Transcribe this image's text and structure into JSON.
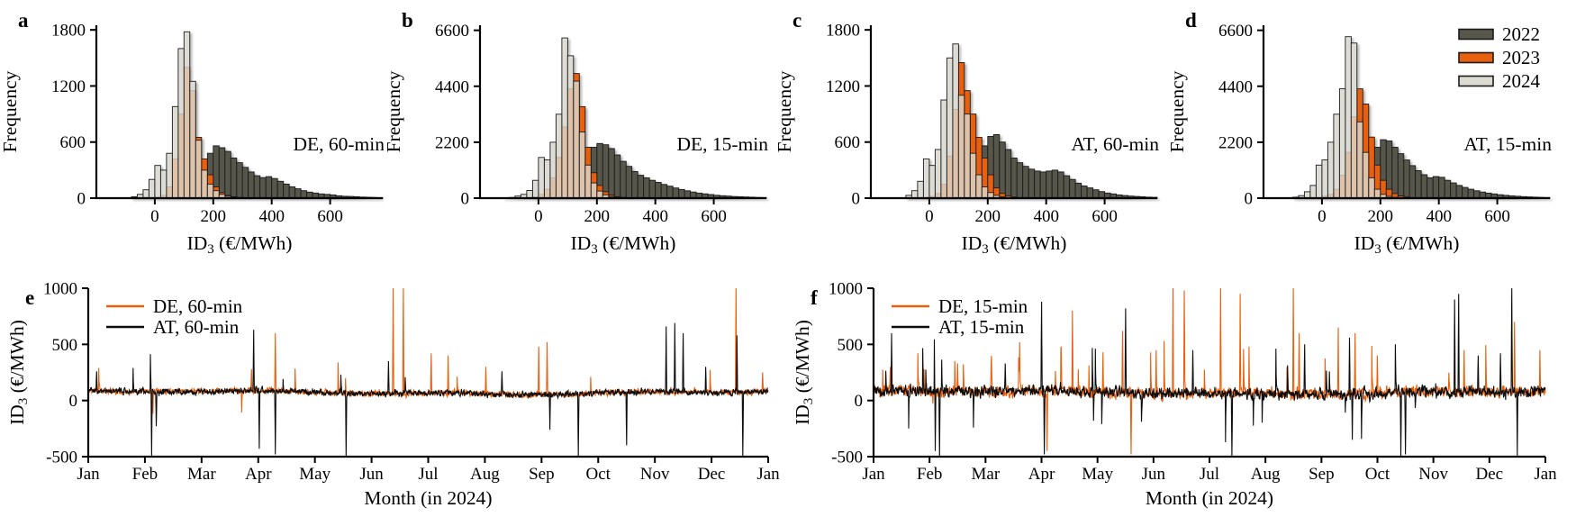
{
  "figure": {
    "background": "#ffffff",
    "axis_color": "#000000",
    "bar_border_color": "#1a1a1a",
    "years_legend": {
      "items": [
        {
          "label": "2022",
          "color": "#57574b"
        },
        {
          "label": "2023",
          "color": "#e8600e"
        },
        {
          "label": "2024",
          "color": "#dcdbd2"
        }
      ]
    },
    "panel_letters": [
      "a",
      "b",
      "c",
      "d",
      "e",
      "f"
    ]
  },
  "chart_data": [
    {
      "id": "a",
      "type": "bar",
      "subtype": "histogram",
      "letter": "a",
      "region_label": "DE, 60-min",
      "ylabel": "Frequency",
      "xlabel": {
        "pre": "ID",
        "sub": "3",
        "post": " (€/MWh)"
      },
      "xlim": [
        -200,
        780
      ],
      "xticks": [
        0,
        200,
        400,
        600
      ],
      "ylim": [
        0,
        1850
      ],
      "yticks": [
        0,
        600,
        1200,
        1800
      ],
      "bin_width": 20,
      "series": [
        {
          "name": "2022",
          "color": "#57574b",
          "opacity": 1,
          "offset": 11,
          "values": [
            5,
            10,
            20,
            40,
            80,
            140,
            220,
            350,
            480,
            560,
            540,
            500,
            430,
            380,
            330,
            280,
            240,
            220,
            230,
            210,
            180,
            150,
            120,
            100,
            80,
            65,
            55,
            45,
            40,
            35,
            25,
            20,
            18,
            15,
            12,
            10,
            8,
            6
          ]
        },
        {
          "name": "2023",
          "color": "#e8600e",
          "opacity": 1,
          "offset": 10,
          "values": [
            10,
            30,
            120,
            420,
            900,
            1400,
            1150,
            650,
            420,
            250,
            120,
            60,
            30,
            15,
            8,
            4
          ]
        },
        {
          "name": "2024",
          "color": "#dcdbd2",
          "opacity": 0.8,
          "offset": 6,
          "values": [
            15,
            40,
            90,
            200,
            350,
            300,
            480,
            980,
            1600,
            1780,
            1250,
            620,
            300,
            150,
            80,
            40,
            20,
            10,
            5
          ]
        }
      ]
    },
    {
      "id": "b",
      "type": "bar",
      "subtype": "histogram",
      "letter": "b",
      "region_label": "DE, 15-min",
      "ylabel": "Frequency",
      "xlabel": {
        "pre": "ID",
        "sub": "3",
        "post": " (€/MWh)"
      },
      "xlim": [
        -200,
        780
      ],
      "xticks": [
        0,
        200,
        400,
        600
      ],
      "ylim": [
        0,
        6800
      ],
      "yticks": [
        0,
        2200,
        4400,
        6600
      ],
      "bin_width": 20,
      "series": [
        {
          "name": "2022",
          "color": "#57574b",
          "opacity": 1,
          "offset": 10,
          "values": [
            30,
            60,
            100,
            160,
            260,
            400,
            700,
            1100,
            1600,
            2000,
            2150,
            2100,
            1950,
            1700,
            1450,
            1250,
            1050,
            900,
            800,
            700,
            620,
            540,
            470,
            400,
            340,
            290,
            240,
            200,
            170,
            140,
            115,
            95,
            80,
            65,
            55,
            45,
            38,
            30,
            25
          ]
        },
        {
          "name": "2023",
          "color": "#e8600e",
          "opacity": 1,
          "offset": 9,
          "values": [
            50,
            150,
            350,
            800,
            1600,
            2800,
            4300,
            4900,
            3600,
            2000,
            1000,
            500,
            250,
            120,
            60,
            30,
            15
          ]
        },
        {
          "name": "2024",
          "color": "#dcdbd2",
          "opacity": 0.8,
          "offset": 4,
          "values": [
            10,
            30,
            80,
            150,
            300,
            700,
            1600,
            1500,
            2200,
            3300,
            6300,
            5600,
            4600,
            2600,
            1300,
            600,
            280,
            130,
            60,
            30,
            15
          ]
        }
      ]
    },
    {
      "id": "c",
      "type": "bar",
      "subtype": "histogram",
      "letter": "c",
      "region_label": "AT, 60-min",
      "ylabel": "Frequency",
      "xlabel": {
        "pre": "ID",
        "sub": "3",
        "post": " (€/MWh)"
      },
      "xlim": [
        -200,
        780
      ],
      "xticks": [
        0,
        200,
        400,
        600
      ],
      "ylim": [
        0,
        1850
      ],
      "yticks": [
        0,
        600,
        1200,
        1800
      ],
      "bin_width": 20,
      "series": [
        {
          "name": "2022",
          "color": "#57574b",
          "opacity": 1,
          "offset": 12,
          "values": [
            10,
            20,
            45,
            90,
            160,
            260,
            380,
            560,
            660,
            680,
            600,
            520,
            430,
            380,
            340,
            310,
            290,
            280,
            290,
            300,
            280,
            240,
            200,
            160,
            130,
            110,
            90,
            70,
            55,
            45,
            35,
            28,
            22,
            18,
            14,
            11,
            9
          ]
        },
        {
          "name": "2023",
          "color": "#e8600e",
          "opacity": 1,
          "offset": 10,
          "values": [
            20,
            50,
            150,
            450,
            950,
            1450,
            1150,
            900,
            650,
            430,
            250,
            110,
            50,
            25,
            12
          ]
        },
        {
          "name": "2024",
          "color": "#dcdbd2",
          "opacity": 0.8,
          "offset": 6,
          "values": [
            30,
            80,
            180,
            420,
            350,
            520,
            1050,
            1500,
            1650,
            1100,
            900,
            480,
            250,
            120,
            60,
            30,
            15
          ]
        }
      ]
    },
    {
      "id": "d",
      "type": "bar",
      "subtype": "histogram",
      "letter": "d",
      "region_label": "AT, 15-min",
      "ylabel": "Frequency",
      "xlabel": {
        "pre": "ID",
        "sub": "3",
        "post": " (€/MWh)"
      },
      "xlim": [
        -200,
        780
      ],
      "xticks": [
        0,
        200,
        400,
        600
      ],
      "ylim": [
        0,
        6800
      ],
      "yticks": [
        0,
        2200,
        4400,
        6600
      ],
      "bin_width": 20,
      "show_years_legend": true,
      "series": [
        {
          "name": "2022",
          "color": "#57574b",
          "opacity": 1,
          "offset": 11,
          "values": [
            40,
            80,
            140,
            240,
            400,
            650,
            1000,
            1500,
            2000,
            2300,
            2250,
            2000,
            1750,
            1500,
            1280,
            1080,
            920,
            800,
            850,
            820,
            700,
            600,
            500,
            420,
            350,
            290,
            240,
            200,
            165,
            135,
            110,
            90,
            75,
            60,
            50,
            40,
            32,
            26
          ]
        },
        {
          "name": "2023",
          "color": "#e8600e",
          "opacity": 1,
          "offset": 10,
          "values": [
            80,
            150,
            350,
            900,
            1800,
            3200,
            4300,
            3700,
            2400,
            1300,
            700,
            350,
            180,
            90,
            45,
            20
          ]
        },
        {
          "name": "2024",
          "color": "#dcdbd2",
          "opacity": 0.8,
          "offset": 5,
          "values": [
            40,
            100,
            250,
            500,
            1300,
            1500,
            2200,
            3300,
            4300,
            6350,
            6100,
            3000,
            1800,
            800,
            350,
            150,
            70,
            30,
            15
          ]
        }
      ]
    },
    {
      "id": "e",
      "type": "line",
      "letter": "e",
      "ylabel": {
        "pre": "ID",
        "sub": "3",
        "post": " (€/MWh)"
      },
      "xlabel": "Month (in 2024)",
      "ylim": [
        -500,
        1000
      ],
      "yticks": [
        1000,
        500,
        0,
        -500
      ],
      "xtick_labels": [
        "Jan",
        "Feb",
        "Mar",
        "Apr",
        "May",
        "Jun",
        "Jul",
        "Aug",
        "Sep",
        "Oct",
        "Nov",
        "Dec",
        "Jan"
      ],
      "baseline": 72,
      "n_points": 2200,
      "series": [
        {
          "name": "DE, 60-min",
          "color": "#e8600e",
          "sim": {
            "seed": 11,
            "sd": 22,
            "spike_prob": 0.0035,
            "spike_mag": 220,
            "pos_bias": 0.82
          },
          "spikes": [
            [
              2.88,
              280
            ],
            [
              3.3,
              600
            ],
            [
              5.38,
              1000
            ],
            [
              5.56,
              1000
            ],
            [
              6.05,
              420
            ],
            [
              6.35,
              400
            ],
            [
              7.02,
              300
            ],
            [
              7.95,
              480
            ],
            [
              8.1,
              520
            ],
            [
              11.43,
              1000
            ],
            [
              11.9,
              250
            ]
          ]
        },
        {
          "name": "AT, 60-min",
          "color": "#0d0d0d",
          "sim": {
            "seed": 23,
            "sd": 22,
            "spike_prob": 0.003,
            "spike_mag": 240,
            "pos_bias": 0.72
          },
          "spikes": [
            [
              0.15,
              260
            ],
            [
              1.12,
              -500
            ],
            [
              1.2,
              -230
            ],
            [
              2.92,
              630
            ],
            [
              3.02,
              -430
            ],
            [
              3.3,
              -480
            ],
            [
              4.55,
              -500
            ],
            [
              5.3,
              350
            ],
            [
              7.3,
              260
            ],
            [
              8.15,
              -260
            ],
            [
              8.65,
              -520
            ],
            [
              9.5,
              -400
            ],
            [
              10.2,
              660
            ],
            [
              10.35,
              690
            ],
            [
              10.5,
              600
            ],
            [
              10.9,
              300
            ],
            [
              11.45,
              580
            ],
            [
              11.55,
              -520
            ]
          ]
        }
      ]
    },
    {
      "id": "f",
      "type": "line",
      "letter": "f",
      "ylabel": {
        "pre": "ID",
        "sub": "3",
        "post": " (€/MWh)"
      },
      "xlabel": "Month (in 2024)",
      "ylim": [
        -500,
        1000
      ],
      "yticks": [
        1000,
        500,
        0,
        -500
      ],
      "xtick_labels": [
        "Jan",
        "Feb",
        "Mar",
        "Apr",
        "May",
        "Jun",
        "Jul",
        "Aug",
        "Sep",
        "Oct",
        "Nov",
        "Dec",
        "Jan"
      ],
      "baseline": 72,
      "n_points": 2200,
      "series": [
        {
          "name": "DE, 15-min",
          "color": "#e8600e",
          "sim": {
            "seed": 37,
            "sd": 40,
            "spike_prob": 0.012,
            "spike_mag": 320,
            "pos_bias": 0.8
          },
          "spikes": [
            [
              0.3,
              300
            ],
            [
              0.9,
              280
            ],
            [
              1.5,
              330
            ],
            [
              2.1,
              350
            ],
            [
              2.6,
              380
            ],
            [
              3.1,
              -450
            ],
            [
              3.35,
              480
            ],
            [
              3.55,
              800
            ],
            [
              4.1,
              430
            ],
            [
              4.45,
              620
            ],
            [
              4.6,
              -480
            ],
            [
              5.05,
              450
            ],
            [
              5.35,
              1000
            ],
            [
              5.55,
              980
            ],
            [
              6.2,
              1000
            ],
            [
              6.55,
              950
            ],
            [
              7.5,
              1000
            ],
            [
              7.6,
              600
            ],
            [
              8.3,
              650
            ],
            [
              8.6,
              600
            ],
            [
              9.0,
              400
            ],
            [
              10.55,
              450
            ],
            [
              11.45,
              700
            ],
            [
              11.9,
              450
            ]
          ]
        },
        {
          "name": "AT, 15-min",
          "color": "#0d0d0d",
          "sim": {
            "seed": 53,
            "sd": 40,
            "spike_prob": 0.01,
            "spike_mag": 320,
            "pos_bias": 0.7
          },
          "spikes": [
            [
              0.32,
              600
            ],
            [
              1.1,
              -450
            ],
            [
              1.18,
              -500
            ],
            [
              2.35,
              330
            ],
            [
              3.0,
              880
            ],
            [
              3.05,
              -480
            ],
            [
              4.5,
              820
            ],
            [
              5.7,
              450
            ],
            [
              6.4,
              -500
            ],
            [
              7.7,
              500
            ],
            [
              8.5,
              560
            ],
            [
              8.55,
              -350
            ],
            [
              9.42,
              -500
            ],
            [
              9.5,
              -480
            ],
            [
              10.38,
              900
            ],
            [
              10.45,
              950
            ],
            [
              10.8,
              400
            ],
            [
              11.2,
              420
            ],
            [
              11.4,
              1000
            ],
            [
              11.5,
              -500
            ]
          ]
        }
      ]
    }
  ]
}
